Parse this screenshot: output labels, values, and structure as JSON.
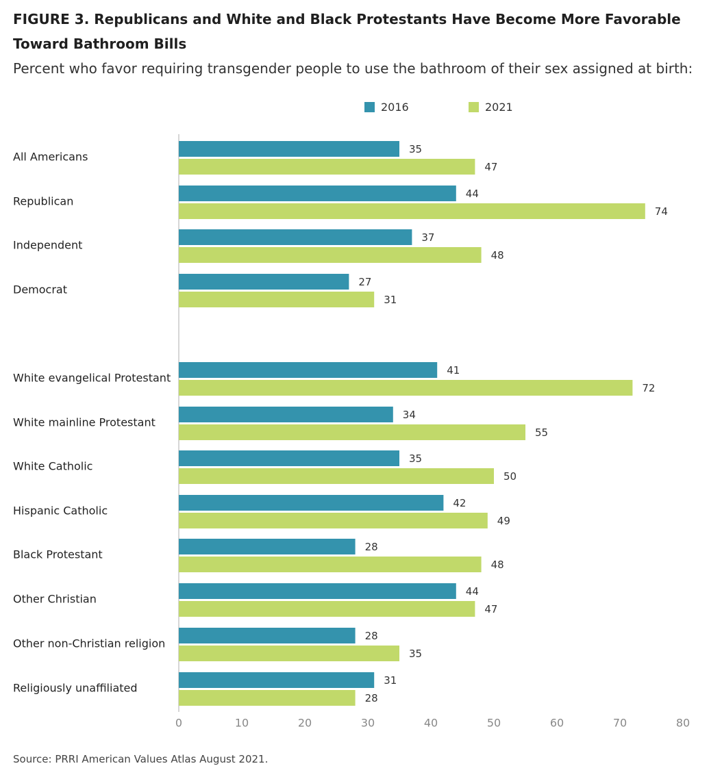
{
  "title": {
    "line1": "FIGURE 3.  Republicans and White and Black Protestants Have Become More Favorable",
    "line2": "Toward  Bathroom Bills"
  },
  "subtitle": "Percent who favor requiring transgender people to use the bathroom of their sex assigned at birth:",
  "source": "Source: PRRI American Values Atlas August 2021.",
  "colors": {
    "series_2016": "#3493ad",
    "series_2021": "#c1d96a",
    "axis": "#d6d6d6",
    "tick_label": "#888888"
  },
  "chart_data": {
    "type": "bar",
    "orientation": "horizontal",
    "categories": [
      "All Americans",
      "Republican",
      "Independent",
      "Democrat",
      "White evangelical Protestant",
      "White mainline Protestant",
      "White Catholic",
      "Hispanic Catholic",
      "Black Protestant",
      "Other Christian",
      "Other non-Christian religion",
      "Religiously unaffiliated"
    ],
    "series": [
      {
        "name": "2016",
        "values": [
          35,
          44,
          37,
          27,
          41,
          34,
          35,
          42,
          28,
          44,
          28,
          31
        ]
      },
      {
        "name": "2021",
        "values": [
          47,
          74,
          48,
          31,
          72,
          55,
          50,
          49,
          48,
          47,
          35,
          28
        ]
      }
    ],
    "xlim": [
      0,
      80
    ],
    "xticks": [
      0,
      10,
      20,
      30,
      40,
      50,
      60,
      70,
      80
    ],
    "legend_position": "top",
    "data_labels": true,
    "grid": false
  }
}
